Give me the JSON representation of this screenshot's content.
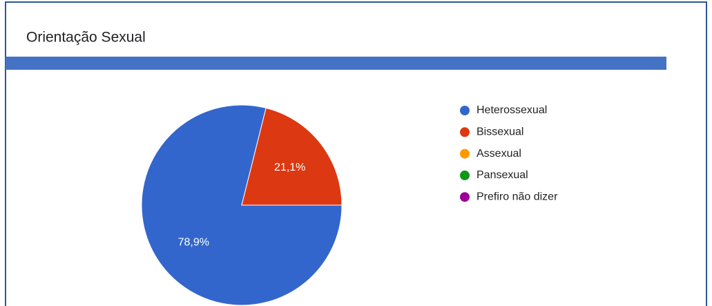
{
  "chart_data": {
    "type": "pie",
    "title": "Orientação Sexual",
    "categories": [
      "Heterossexual",
      "Bissexual",
      "Assexual",
      "Pansexual",
      "Prefiro não dizer"
    ],
    "values": [
      78.9,
      21.1,
      0,
      0,
      0
    ],
    "value_labels": [
      "78,9%",
      "21,1%",
      null,
      null,
      null
    ],
    "colors": [
      "#3366cc",
      "#dc3912",
      "#ff9900",
      "#109618",
      "#990099"
    ],
    "legend": "right"
  }
}
